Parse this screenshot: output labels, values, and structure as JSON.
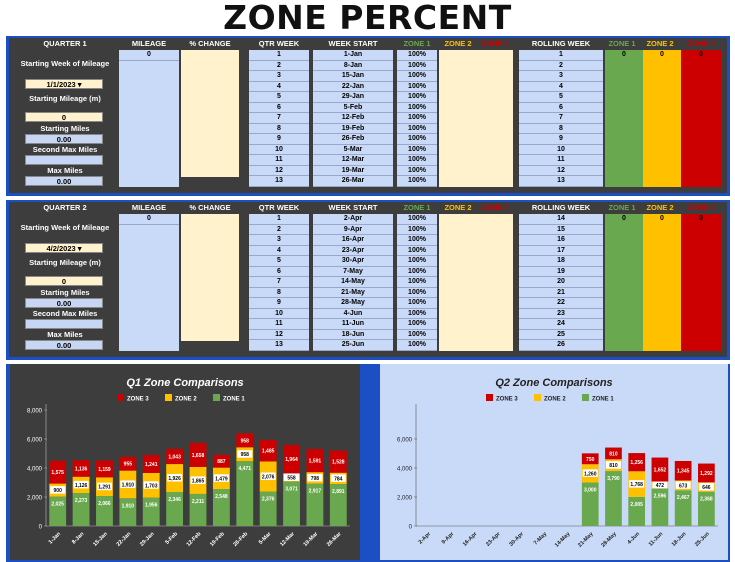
{
  "title": "ZONE PERCENT",
  "headers": {
    "mileage": "MILEAGE",
    "pct_change": "% CHANGE",
    "qtr_week": "QTR WEEK",
    "week_start": "WEEK START",
    "zone1": "ZONE 1",
    "zone2": "ZONE 2",
    "zone3": "ZONE 3",
    "rolling_week": "ROLLING WEEK"
  },
  "labels": {
    "starting_week": "Starting Week of Mileage",
    "starting_mileage": "Starting Mileage (m)",
    "starting_miles": "Starting Miles",
    "second_max_miles": "Second Max Miles",
    "max_miles": "Max Miles"
  },
  "q1": {
    "quarter": "QUARTER 1",
    "start_date": "1/1/2023",
    "starting_mileage": "0",
    "starting_miles": "0.00",
    "second_max_miles": "",
    "max_miles": "0.00",
    "mileage_first": "0",
    "zone_totals": [
      "0",
      "0",
      "0"
    ],
    "weeks": [
      "1",
      "2",
      "3",
      "4",
      "5",
      "6",
      "7",
      "8",
      "9",
      "10",
      "11",
      "12",
      "13"
    ],
    "week_starts": [
      "1-Jan",
      "8-Jan",
      "15-Jan",
      "22-Jan",
      "29-Jan",
      "5-Feb",
      "12-Feb",
      "19-Feb",
      "26-Feb",
      "5-Mar",
      "12-Mar",
      "19-Mar",
      "26-Mar"
    ],
    "zone1_pct": [
      "100%",
      "100%",
      "100%",
      "100%",
      "100%",
      "100%",
      "100%",
      "100%",
      "100%",
      "100%",
      "100%",
      "100%",
      "100%"
    ],
    "rolling": [
      "1",
      "2",
      "3",
      "4",
      "5",
      "6",
      "7",
      "8",
      "9",
      "10",
      "11",
      "12",
      "13"
    ]
  },
  "q2": {
    "quarter": "QUARTER 2",
    "start_date": "4/2/2023",
    "starting_mileage": "0",
    "starting_miles": "0.00",
    "second_max_miles": "",
    "max_miles": "0.00",
    "mileage_first": "0",
    "zone_totals": [
      "0",
      "0",
      "0"
    ],
    "weeks": [
      "1",
      "2",
      "3",
      "4",
      "5",
      "6",
      "7",
      "8",
      "9",
      "10",
      "11",
      "12",
      "13"
    ],
    "week_starts": [
      "2-Apr",
      "9-Apr",
      "16-Apr",
      "23-Apr",
      "30-Apr",
      "7-May",
      "14-May",
      "21-May",
      "28-May",
      "4-Jun",
      "11-Jun",
      "18-Jun",
      "25-Jun"
    ],
    "zone1_pct": [
      "100%",
      "100%",
      "100%",
      "100%",
      "100%",
      "100%",
      "100%",
      "100%",
      "100%",
      "100%",
      "100%",
      "100%",
      "100%"
    ],
    "rolling": [
      "14",
      "15",
      "16",
      "17",
      "18",
      "19",
      "20",
      "21",
      "22",
      "23",
      "24",
      "25",
      "26"
    ]
  },
  "colors": {
    "zone1": "#6aa84f",
    "zone2": "#ffc000",
    "zone3": "#cc0000",
    "blue_cell": "#c9daf8",
    "yellow_cell": "#fff2cc",
    "frame": "#1c4fc4",
    "panel": "#3d3d3d"
  },
  "chart_data": [
    {
      "type": "bar",
      "stacked": true,
      "title": "Q1 Zone Comparisons",
      "categories": [
        "1-Jan",
        "8-Jan",
        "15-Jan",
        "22-Jan",
        "29-Jan",
        "5-Feb",
        "12-Feb",
        "19-Feb",
        "26-Feb",
        "5-Mar",
        "12-Mar",
        "19-Mar",
        "26-Mar"
      ],
      "series": [
        {
          "name": "ZONE 1",
          "values": [
            2025,
            2273,
            2066,
            1910,
            1956,
            2346,
            2211,
            2548,
            4471,
            2376,
            3071,
            2917,
            2891
          ]
        },
        {
          "name": "ZONE 2",
          "values": [
            900,
            1126,
            1291,
            1910,
            1703,
            1926,
            1865,
            1479,
            958,
            2076,
            558,
            798,
            784
          ]
        },
        {
          "name": "ZONE 3",
          "values": [
            1575,
            1136,
            1159,
            955,
            1241,
            1043,
            1658,
            887,
            958,
            1485,
            1964,
            1591,
            1528
          ]
        }
      ],
      "ylim": [
        0,
        8000
      ],
      "yticks": [
        "0",
        "2,000",
        "4,000",
        "6,000",
        "8,000"
      ],
      "legend": "top"
    },
    {
      "type": "bar",
      "stacked": true,
      "title": "Q2 Zone Comparisons",
      "categories": [
        "2-Apr",
        "9-Apr",
        "16-Apr",
        "23-Apr",
        "30-Apr",
        "7-May",
        "14-May",
        "21-May",
        "28-May",
        "4-Jun",
        "11-Jun",
        "18-Jun",
        "25-Jun"
      ],
      "series": [
        {
          "name": "ZONE 1",
          "values": [
            0,
            0,
            0,
            0,
            0,
            0,
            0,
            3000,
            3790,
            2005,
            2596,
            2467,
            2368
          ]
        },
        {
          "name": "ZONE 2",
          "values": [
            0,
            0,
            0,
            0,
            0,
            0,
            0,
            1260,
            810,
            1768,
            472,
            673,
            646
          ]
        },
        {
          "name": "ZONE 3",
          "values": [
            0,
            0,
            0,
            0,
            0,
            0,
            0,
            750,
            810,
            1256,
            1652,
            1345,
            1292
          ]
        }
      ],
      "ylim": [
        0,
        8000
      ],
      "yticks": [
        "0",
        "2,000",
        "4,000",
        "6,000"
      ],
      "legend": "top"
    }
  ]
}
